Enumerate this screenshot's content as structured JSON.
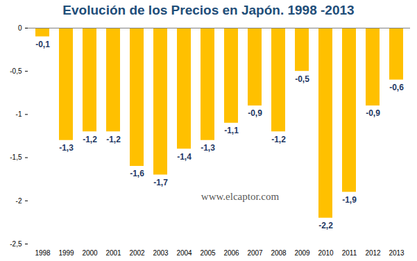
{
  "chart_data": {
    "type": "bar",
    "title": "Evolución de los Precios en Japón. 1998 -2013",
    "categories": [
      "1998",
      "1999",
      "2000",
      "2001",
      "2002",
      "2003",
      "2004",
      "2005",
      "2006",
      "2007",
      "2008",
      "2009",
      "2010",
      "2011",
      "2012",
      "2013"
    ],
    "values": [
      -0.1,
      -1.3,
      -1.2,
      -1.2,
      -1.6,
      -1.7,
      -1.4,
      -1.3,
      -1.1,
      -0.9,
      -1.2,
      -0.5,
      -2.2,
      -1.9,
      -0.9,
      -0.6
    ],
    "value_labels": [
      "-0,1",
      "-1,3",
      "-1,2",
      "-1,2",
      "-1,6",
      "-1,7",
      "-1,4",
      "-1,3",
      "-1,1",
      "-0,9",
      "-1,2",
      "-0,5",
      "-2,2",
      "-1,9",
      "-0,9",
      "-0,6"
    ],
    "color": "#FFC000",
    "ylim": [
      -2.5,
      0
    ],
    "yticks": [
      0,
      {
        "value": -0.5,
        "label": "-0,5"
      },
      -1,
      {
        "value": -1.5,
        "label": "-1,5"
      },
      -2,
      {
        "value": -2.5,
        "label": "-2,5"
      }
    ],
    "data_labels": true,
    "grid": false,
    "annotations": [
      "www.elcaptor.com"
    ]
  }
}
